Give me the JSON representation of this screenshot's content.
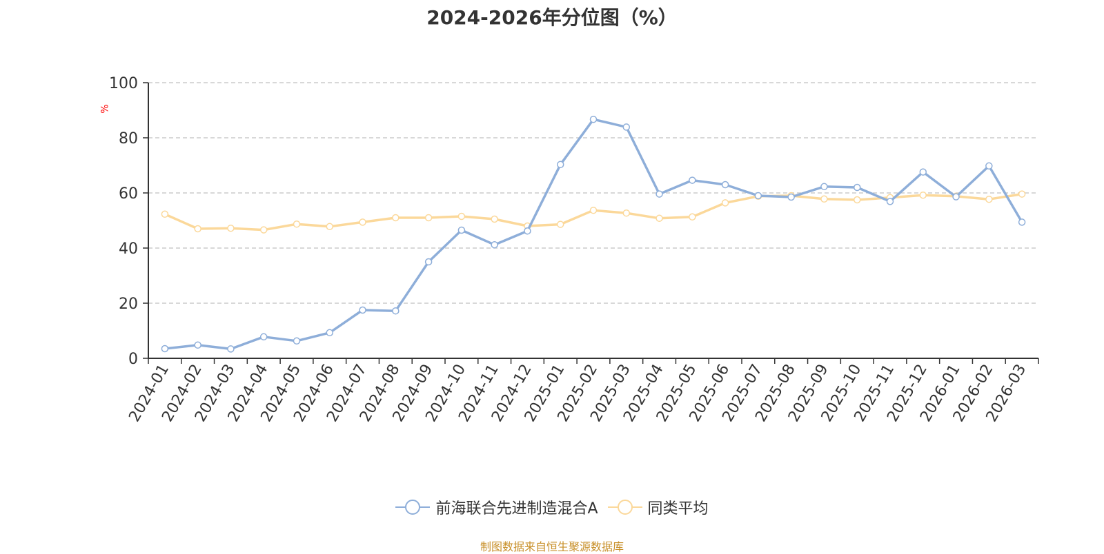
{
  "chart_data": {
    "type": "line",
    "title": "2024-2026年分位图（%）",
    "ylabel": "%",
    "xlabel": "",
    "ylim": [
      0,
      100
    ],
    "yticks": [
      0,
      20,
      40,
      60,
      80,
      100
    ],
    "grid": true,
    "legend_position": "bottom",
    "categories": [
      "2024-01",
      "2024-02",
      "2024-03",
      "2024-04",
      "2024-05",
      "2024-06",
      "2024-07",
      "2024-08",
      "2024-09",
      "2024-10",
      "2024-11",
      "2024-12",
      "2025-01",
      "2025-02",
      "2025-03",
      "2025-04",
      "2025-05",
      "2025-06",
      "2025-07",
      "2025-08",
      "2025-09",
      "2025-10",
      "2025-11",
      "2025-12",
      "2026-01",
      "2026-02",
      "2026-03"
    ],
    "series": [
      {
        "name": "前海联合先进制造混合A",
        "color": "#8eaed9",
        "values": [
          3.5,
          4.8,
          3.4,
          7.8,
          6.3,
          9.3,
          17.5,
          17.2,
          35,
          46.5,
          41.2,
          46.2,
          70.3,
          86.7,
          83.9,
          59.6,
          64.6,
          63,
          59,
          58.5,
          62.3,
          62,
          56.9,
          67.6,
          58.6,
          69.8,
          49.4
        ]
      },
      {
        "name": "同类平均",
        "color": "#fbd89a",
        "values": [
          52.3,
          47,
          47.2,
          46.6,
          48.7,
          47.8,
          49.4,
          51,
          51,
          51.5,
          50.5,
          48,
          48.6,
          53.7,
          52.7,
          50.8,
          51.3,
          56.4,
          58.8,
          59,
          57.8,
          57.5,
          58.3,
          59.2,
          58.8,
          57.7,
          59.6
        ]
      }
    ]
  },
  "footer": {
    "source": "制图数据来自恒生聚源数据库"
  },
  "colors": {
    "axis": "#333333",
    "grid": "#cccccc",
    "unit_label": "#ff0000",
    "source_text": "#c8902a"
  }
}
